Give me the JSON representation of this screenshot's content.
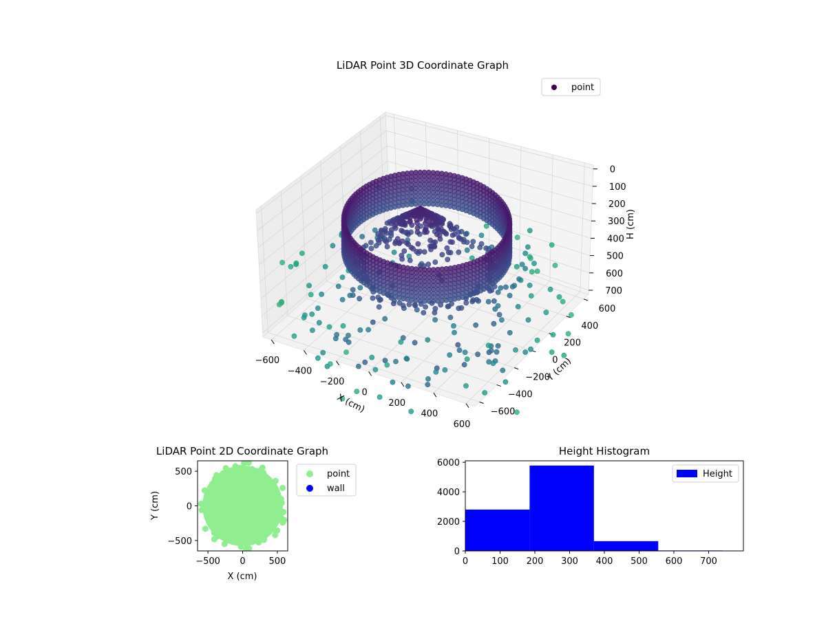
{
  "figure": {
    "background": "#ffffff"
  },
  "chart_data": [
    {
      "id": "scatter3d",
      "type": "scatter",
      "projection": "3d",
      "title": "LiDAR Point 3D Coordinate Graph",
      "xlabel": "X (cm)",
      "ylabel": "Y (cm)",
      "zlabel": "H (cm)",
      "xlim": [
        -650,
        650
      ],
      "ylim": [
        -650,
        650
      ],
      "zlim": [
        0,
        760
      ],
      "z_axis_inverted": true,
      "x_ticks": [
        "−600",
        "−400",
        "−200",
        "0",
        "200",
        "400",
        "600"
      ],
      "y_ticks": [
        "−600",
        "−400",
        "−200",
        "0",
        "200",
        "400",
        "600"
      ],
      "z_ticks": [
        "0",
        "100",
        "200",
        "300",
        "400",
        "500",
        "600",
        "700"
      ],
      "legend": {
        "position": "top-right",
        "entries": [
          {
            "label": "point",
            "color": "#440154"
          }
        ]
      },
      "colormap": "viridis",
      "grid": true,
      "series": [
        {
          "name": "point",
          "groups": [
            {
              "shape": "cylinder-wall",
              "radius": 530,
              "h_range": [
                70,
                250
              ]
            },
            {
              "shape": "cone",
              "apex": [
                -100,
                100,
                70
              ],
              "base_radius": 280,
              "h_range": [
                70,
                250
              ]
            },
            {
              "shape": "inner-ring",
              "radius": 430,
              "h": 320
            },
            {
              "shape": "scattered-floor",
              "radius_range": [
                400,
                950
              ],
              "h_range": [
                330,
                760
              ]
            }
          ]
        }
      ]
    },
    {
      "id": "scatter2d",
      "type": "scatter",
      "title": "LiDAR Point 2D Coordinate Graph",
      "xlabel": "X (cm)",
      "ylabel": "Y (cm)",
      "xlim": [
        -650,
        650
      ],
      "ylim": [
        -650,
        650
      ],
      "x_ticks": [
        -500,
        0,
        500
      ],
      "y_ticks": [
        -500,
        0,
        500
      ],
      "legend": {
        "position": "outside-right",
        "entries": [
          {
            "label": "point",
            "color": "#90ee90"
          },
          {
            "label": "wall",
            "color": "#0000ff"
          }
        ]
      },
      "series": [
        {
          "name": "point",
          "color": "#90ee90",
          "shape": "disc",
          "radius": 580
        },
        {
          "name": "wall",
          "color": "#0000ff",
          "values": []
        }
      ]
    },
    {
      "id": "histogram",
      "type": "bar",
      "title": "Height Histogram",
      "xlabel": "",
      "ylabel": "",
      "xlim": [
        0,
        800
      ],
      "ylim": [
        0,
        6100
      ],
      "x_ticks": [
        0,
        100,
        200,
        300,
        400,
        500,
        600,
        700
      ],
      "y_ticks": [
        0,
        2000,
        4000,
        6000
      ],
      "legend": {
        "position": "top-right",
        "entries": [
          {
            "label": "Height",
            "color": "#0000ff"
          }
        ]
      },
      "series": [
        {
          "name": "Height",
          "color": "#0000ff",
          "bins": [
            {
              "from": 0,
              "to": 185,
              "value": 2800
            },
            {
              "from": 185,
              "to": 370,
              "value": 5780
            },
            {
              "from": 370,
              "to": 555,
              "value": 660
            },
            {
              "from": 555,
              "to": 740,
              "value": 30
            },
            {
              "from": 740,
              "to": 800,
              "value": 15
            }
          ]
        }
      ]
    }
  ]
}
